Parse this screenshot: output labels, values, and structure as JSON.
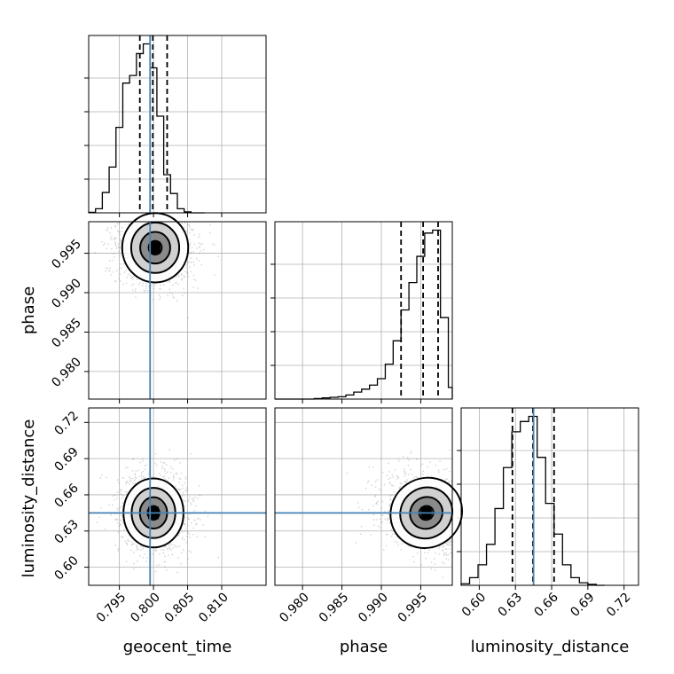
{
  "chart_data": {
    "type": "corner",
    "parameters": [
      "geocent_time",
      "phase",
      "luminosity_distance"
    ],
    "truths": {
      "geocent_time": 0.7995,
      "phase": null,
      "luminosity_distance": 0.645
    },
    "grid": true,
    "scatter_color": "#7f7f7f",
    "truth_color": "#4682b4",
    "histograms": [
      {
        "parameter": "geocent_time",
        "xlim": [
          0.7905,
          0.8165
        ],
        "bin_edges": [
          0.7905,
          0.7915,
          0.7925,
          0.7935,
          0.7945,
          0.7955,
          0.7965,
          0.7975,
          0.7985,
          0.7995,
          0.8005,
          0.8015,
          0.8025,
          0.8035,
          0.8045,
          0.8055,
          0.8065,
          0.8075
        ],
        "counts": [
          1,
          8,
          40,
          90,
          168,
          255,
          270,
          313,
          332,
          285,
          190,
          75,
          38,
          8,
          2,
          0,
          0
        ],
        "quantiles": [
          0.798,
          0.7999,
          0.802
        ],
        "x_ticks": [
          0.795,
          0.8,
          0.805,
          0.81
        ],
        "x_tick_labels": [
          "0.795",
          "0.800",
          "0.805",
          "0.810"
        ],
        "x_label": "geocent_time"
      },
      {
        "parameter": "phase",
        "xlim": [
          0.9765,
          0.999
        ],
        "bin_edges": [
          0.9765,
          0.9775,
          0.9785,
          0.9795,
          0.9805,
          0.9815,
          0.9825,
          0.9835,
          0.9845,
          0.9855,
          0.9865,
          0.9875,
          0.9885,
          0.9895,
          0.9905,
          0.9915,
          0.9925,
          0.9935,
          0.9945,
          0.9955,
          0.9965,
          0.9975,
          0.9985,
          0.999
        ],
        "counts": [
          0,
          0,
          0,
          0,
          0,
          1,
          2,
          3,
          4,
          7,
          12,
          17,
          24,
          35,
          60,
          100,
          153,
          200,
          245,
          285,
          290,
          140,
          20
        ],
        "quantiles": [
          0.9925,
          0.9953,
          0.9972
        ],
        "x_ticks": [
          0.98,
          0.985,
          0.99,
          0.995
        ],
        "x_tick_labels": [
          "0.980",
          "0.985",
          "0.990",
          "0.995"
        ],
        "x_label": "phase"
      },
      {
        "parameter": "luminosity_distance",
        "xlim": [
          0.585,
          0.732
        ],
        "bin_edges": [
          0.585,
          0.592,
          0.599,
          0.606,
          0.613,
          0.62,
          0.627,
          0.634,
          0.641,
          0.648,
          0.655,
          0.662,
          0.669,
          0.676,
          0.683,
          0.69,
          0.697,
          0.704
        ],
        "counts": [
          3,
          15,
          40,
          80,
          150,
          230,
          300,
          320,
          330,
          250,
          160,
          100,
          40,
          15,
          5,
          2,
          0
        ],
        "quantiles": [
          0.6275,
          0.6445,
          0.662
        ],
        "x_ticks": [
          0.6,
          0.63,
          0.66,
          0.69,
          0.72
        ],
        "x_tick_labels": [
          "0.60",
          "0.63",
          "0.66",
          "0.69",
          "0.72"
        ],
        "x_label": "luminosity_distance"
      }
    ],
    "joint_panels": [
      {
        "x": "geocent_time",
        "y": "phase",
        "center": [
          0.80025,
          0.9957
        ],
        "spread": [
          0.0022,
          0.002
        ],
        "ylim": [
          0.9765,
          0.999
        ],
        "y_ticks": [
          0.98,
          0.985,
          0.99,
          0.995
        ],
        "y_tick_labels": [
          "0.980",
          "0.985",
          "0.990",
          "0.995"
        ],
        "y_label": "phase"
      },
      {
        "x": "geocent_time",
        "y": "luminosity_distance",
        "center": [
          0.8,
          0.645
        ],
        "spread": [
          0.002,
          0.013
        ],
        "ylim": [
          0.585,
          0.732
        ],
        "y_ticks": [
          0.6,
          0.63,
          0.66,
          0.69,
          0.72
        ],
        "y_tick_labels": [
          "0.60",
          "0.63",
          "0.66",
          "0.69",
          "0.72"
        ],
        "y_label": "luminosity_distance"
      },
      {
        "x": "phase",
        "y": "luminosity_distance",
        "center": [
          0.9957,
          0.645
        ],
        "spread": [
          0.002,
          0.013
        ],
        "ylim": [
          0.585,
          0.732
        ]
      }
    ]
  }
}
